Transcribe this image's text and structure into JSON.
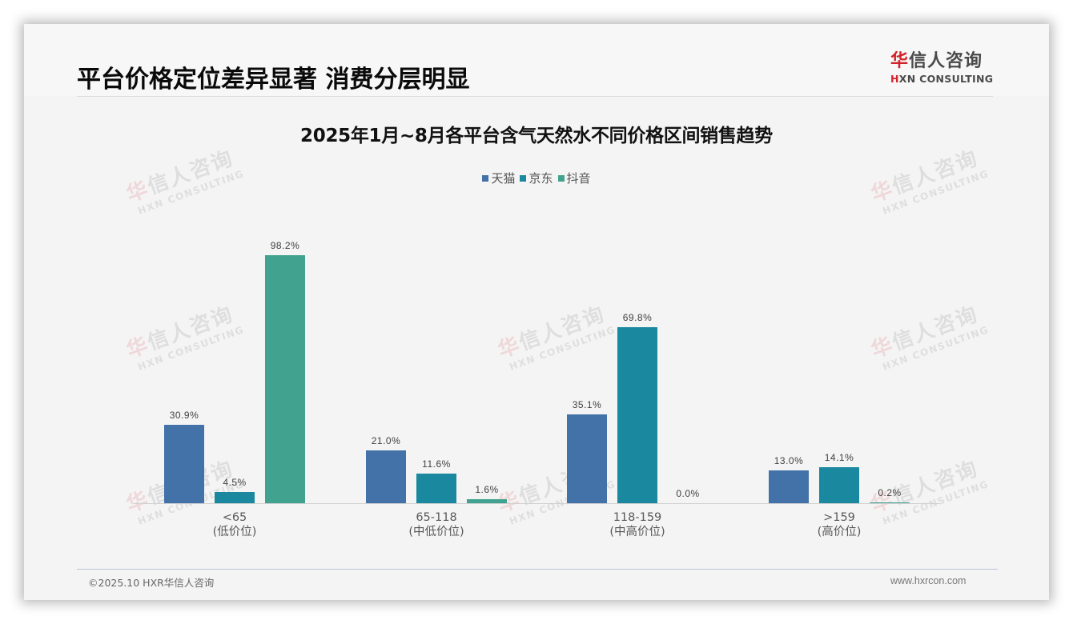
{
  "page": {
    "title": "平台价格定位差异显著 消费分层明显",
    "logo": {
      "cn_red": "华",
      "cn_rest": "信人咨询",
      "en_red": "H",
      "en_rest": "XN CONSULTING"
    },
    "watermark": {
      "cn_red": "华",
      "cn_rest": "信人咨询",
      "en": "HXN CONSULTING"
    },
    "footer": {
      "copyright": "©2025.10 HXR华信人咨询",
      "website": "www.hxrcon.com"
    }
  },
  "colors": {
    "tmall": "#4272a8",
    "jd": "#1a889e",
    "douyin": "#41a38f"
  },
  "chart_data": {
    "type": "bar",
    "title": "2025年1月~8月各平台含气天然水不同价格区间销售趋势",
    "categories": [
      "<65\n(低价位)",
      "65-118\n(中低价位)",
      "118-159\n(中高价位)",
      ">159\n(高价位)"
    ],
    "category_labels": [
      {
        "range": "<65",
        "tier": "(低价位)"
      },
      {
        "range": "65-118",
        "tier": "(中低价位)"
      },
      {
        "range": "118-159",
        "tier": "(中高价位)"
      },
      {
        "range": ">159",
        "tier": "(高价位)"
      }
    ],
    "series": [
      {
        "name": "天猫",
        "values": [
          30.9,
          21.0,
          35.1,
          13.0
        ],
        "labels": [
          "30.9%",
          "21.0%",
          "35.1%",
          "13.0%"
        ]
      },
      {
        "name": "京东",
        "values": [
          4.5,
          11.6,
          69.8,
          14.1
        ],
        "labels": [
          "4.5%",
          "11.6%",
          "69.8%",
          "14.1%"
        ]
      },
      {
        "name": "抖音",
        "values": [
          98.2,
          1.6,
          0.0,
          0.2
        ],
        "labels": [
          "98.2%",
          "1.6%",
          "0.0%",
          "0.2%"
        ]
      }
    ],
    "legend": [
      "天猫",
      "京东",
      "抖音"
    ],
    "legend_position": "top",
    "xlabel": "",
    "ylabel": "",
    "ylim": [
      0,
      100
    ],
    "grid": false,
    "y_axis_visible": false,
    "unit": "%"
  }
}
